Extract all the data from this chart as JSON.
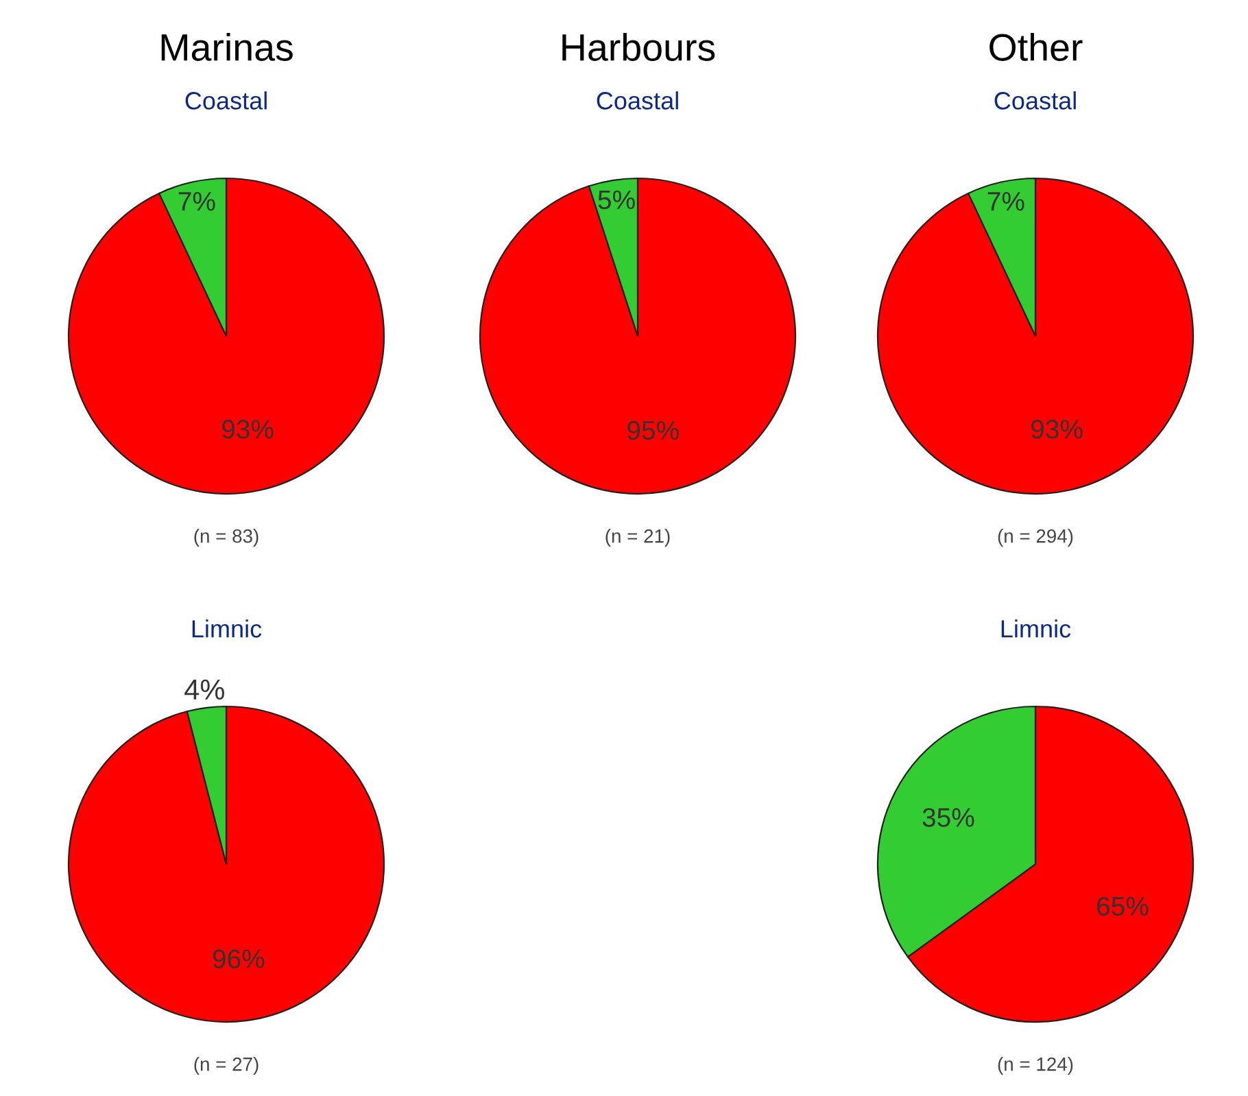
{
  "chart_data": [
    {
      "type": "pie",
      "title": "Marinas",
      "subtitle": "Coastal",
      "categories": [
        null,
        null
      ],
      "values": [
        93,
        7
      ],
      "colors": [
        "#ff0000",
        "#33cc33"
      ],
      "value_labels": [
        "93%",
        "7%"
      ],
      "annotations": [
        "(n = 83)"
      ]
    },
    {
      "type": "pie",
      "title": "Harbours",
      "subtitle": "Coastal",
      "categories": [
        null,
        null
      ],
      "values": [
        95,
        5
      ],
      "colors": [
        "#ff0000",
        "#33cc33"
      ],
      "value_labels": [
        "95%",
        "5%"
      ],
      "annotations": [
        "(n = 21)"
      ]
    },
    {
      "type": "pie",
      "title": "Other",
      "subtitle": "Coastal",
      "categories": [
        null,
        null
      ],
      "values": [
        93,
        7
      ],
      "colors": [
        "#ff0000",
        "#33cc33"
      ],
      "value_labels": [
        "93%",
        "7%"
      ],
      "annotations": [
        "(n = 294)"
      ]
    },
    {
      "type": "pie",
      "subtitle": "Limnic",
      "categories": [
        null,
        null
      ],
      "values": [
        96,
        4
      ],
      "colors": [
        "#ff0000",
        "#33cc33"
      ],
      "value_labels": [
        "96%",
        "4%"
      ],
      "annotations": [
        "(n = 27)"
      ]
    },
    {
      "type": "pie",
      "subtitle": "Limnic",
      "categories": [
        null,
        null
      ],
      "values": [
        65,
        35
      ],
      "colors": [
        "#ff0000",
        "#33cc33"
      ],
      "value_labels": [
        "65%",
        "35%"
      ],
      "annotations": [
        "(n = 124)"
      ]
    }
  ]
}
